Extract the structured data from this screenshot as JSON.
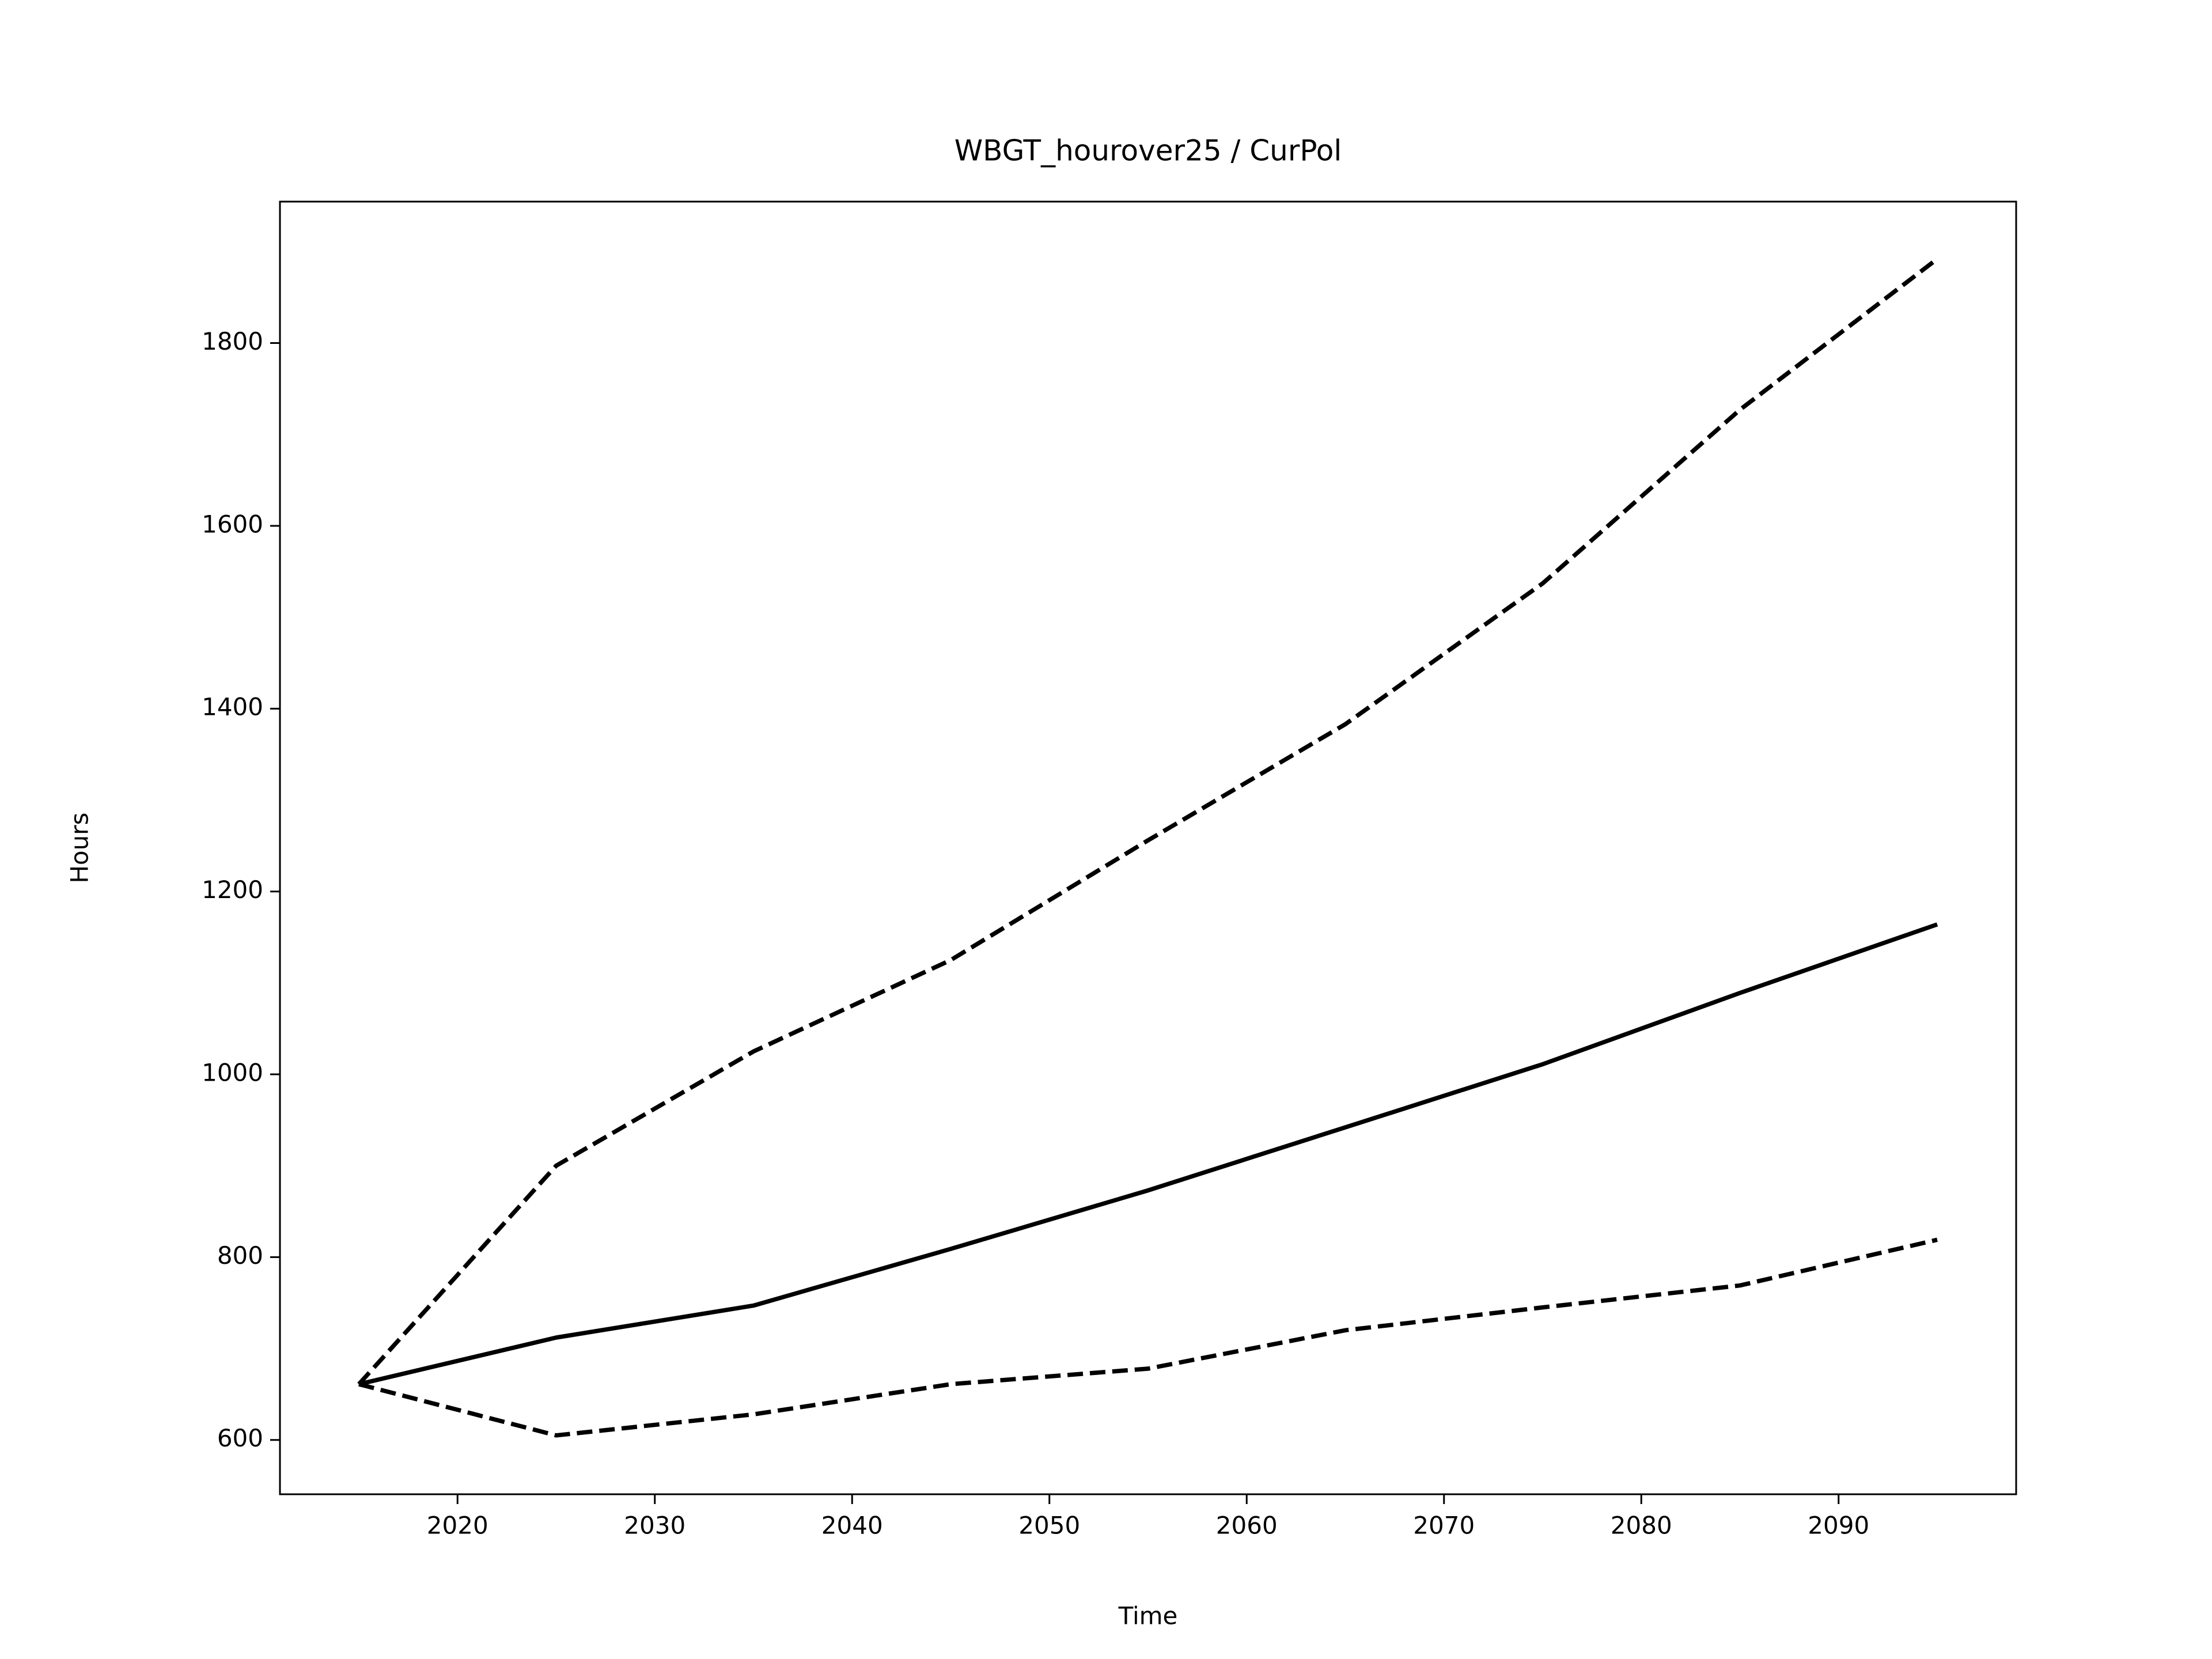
{
  "chart_data": {
    "type": "line",
    "title": "WBGT_hourover25 / CurPol",
    "x_label": "Time",
    "y_label": "Hours",
    "x": [
      2015,
      2025,
      2035,
      2045,
      2055,
      2065,
      2075,
      2085,
      2095
    ],
    "series": [
      {
        "color": "#000000",
        "linestyle": "solid",
        "values": [
          661,
          712,
          747,
          809,
          873,
          942,
          1011,
          1089,
          1164
        ]
      },
      {
        "color": "#000000",
        "linestyle": "dashed",
        "values": [
          661,
          900,
          1025,
          1125,
          1256,
          1383,
          1537,
          1727,
          1892
        ]
      },
      {
        "color": "#000000",
        "linestyle": "dashed",
        "values": [
          661,
          605,
          628,
          661,
          678,
          720,
          745,
          769,
          819
        ]
      }
    ],
    "xlim": [
      2011,
      2099
    ],
    "ylim": [
      540.6,
      1954.7
    ],
    "xticks": [
      2020,
      2030,
      2040,
      2050,
      2060,
      2070,
      2080,
      2090
    ],
    "yticks": [
      600,
      800,
      1000,
      1200,
      1400,
      1600,
      1800
    ],
    "grid": false
  }
}
